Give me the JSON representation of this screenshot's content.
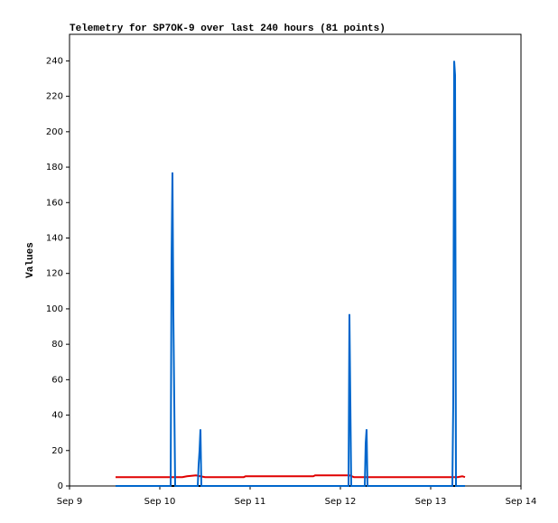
{
  "chart_data": {
    "type": "line",
    "title": "Telemetry for SP7OK-9 over last 240 hours (81 points)",
    "y_label": "Values",
    "xlim": [
      9,
      14
    ],
    "xticks": [
      {
        "value": 9,
        "label": "Sep 9"
      },
      {
        "value": 10,
        "label": "Sep 10"
      },
      {
        "value": 11,
        "label": "Sep 11"
      },
      {
        "value": 12,
        "label": "Sep 12"
      },
      {
        "value": 13,
        "label": "Sep 13"
      },
      {
        "value": 14,
        "label": "Sep 14"
      }
    ],
    "ylim": [
      0,
      255
    ],
    "yticks": [
      0,
      20,
      40,
      60,
      80,
      100,
      120,
      140,
      160,
      180,
      200,
      220,
      240
    ],
    "series": [
      {
        "color": "#e00000",
        "x": [
          9.51,
          10.25,
          10.3,
          10.4,
          10.5,
          10.93,
          10.95,
          11.7,
          11.72,
          12.1,
          12.15,
          13.3,
          13.35,
          13.38
        ],
        "values": [
          5,
          5,
          5.5,
          6,
          5,
          5,
          5.5,
          5.5,
          6,
          6,
          5,
          5,
          5.5,
          5
        ]
      },
      {
        "color": "#000000",
        "x": [
          9.51,
          13.38
        ],
        "values": [
          0,
          0
        ]
      },
      {
        "color": "#0066cc",
        "x": [
          9.51,
          10.12,
          10.13,
          10.14,
          10.15,
          10.16,
          10.17,
          10.42,
          10.43,
          10.44,
          10.45,
          10.46,
          12.09,
          12.1,
          12.11,
          12.12,
          12.27,
          12.28,
          12.29,
          12.3,
          13.24,
          13.25,
          13.26,
          13.27,
          13.28,
          13.38
        ],
        "values": [
          0,
          0,
          128,
          177,
          97,
          48,
          0,
          0,
          12,
          20,
          32,
          0,
          0,
          97,
          48,
          0,
          0,
          24,
          32,
          0,
          0,
          48,
          240,
          232,
          0,
          0
        ]
      }
    ]
  }
}
